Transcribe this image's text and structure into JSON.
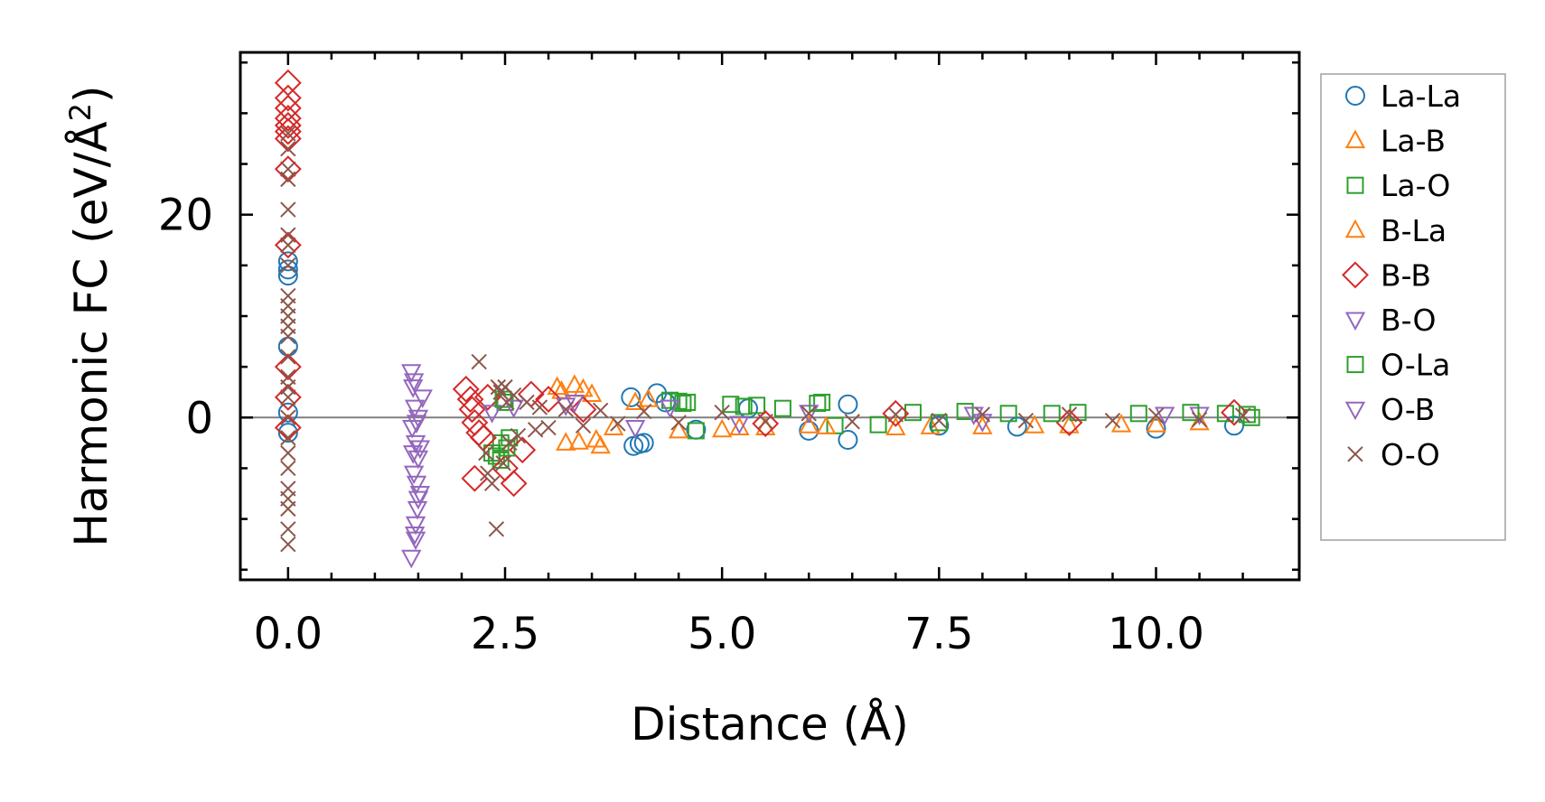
{
  "chart_data": {
    "type": "scatter",
    "title": "",
    "xlabel": "Distance (Å)",
    "ylabel_main": "Harmonic FC (eV/Å",
    "ylabel_sup": "2",
    "ylabel_close": ")",
    "xlim": [
      -0.55,
      11.65
    ],
    "ylim": [
      -16,
      36
    ],
    "x_ticks": [
      0.0,
      2.5,
      5.0,
      7.5,
      10.0
    ],
    "x_tick_labels": [
      "0.0",
      "2.5",
      "5.0",
      "7.5",
      "10.0"
    ],
    "y_ticks": [
      0,
      20
    ],
    "y_tick_labels": [
      "0",
      "20"
    ],
    "legend_position": "outside-right",
    "zero_line": true,
    "series": [
      {
        "name": "La-La",
        "marker": "circle",
        "color": "#1f77b4",
        "points": [
          [
            0.0,
            15.4
          ],
          [
            0.0,
            14.6
          ],
          [
            0.0,
            14.0
          ],
          [
            0.0,
            7.0
          ],
          [
            0.0,
            -1.5
          ],
          [
            0.0,
            0.5
          ],
          [
            3.95,
            2.0
          ],
          [
            3.98,
            -2.8
          ],
          [
            4.05,
            -2.6
          ],
          [
            4.1,
            -2.5
          ],
          [
            4.25,
            2.4
          ],
          [
            4.35,
            1.5
          ],
          [
            4.7,
            -1.2
          ],
          [
            5.3,
            0.9
          ],
          [
            6.0,
            -1.3
          ],
          [
            6.45,
            -2.2
          ],
          [
            6.45,
            1.3
          ],
          [
            7.5,
            -0.8
          ],
          [
            8.4,
            -0.9
          ],
          [
            10.0,
            -1.1
          ],
          [
            10.9,
            -0.8
          ]
        ]
      },
      {
        "name": "La-B",
        "marker": "triangle-up",
        "color": "#ff7f0e",
        "points": [
          [
            3.1,
            3.0
          ],
          [
            3.2,
            -2.5
          ],
          [
            3.3,
            3.2
          ],
          [
            3.35,
            -2.4
          ],
          [
            3.5,
            2.3
          ],
          [
            3.6,
            -2.8
          ],
          [
            3.75,
            -1.0
          ],
          [
            4.0,
            1.5
          ],
          [
            5.0,
            -1.2
          ],
          [
            5.5,
            -1.0
          ],
          [
            6.0,
            -0.8
          ],
          [
            7.0,
            -1.0
          ],
          [
            8.0,
            -0.9
          ],
          [
            9.0,
            -0.8
          ],
          [
            10.0,
            -0.7
          ],
          [
            10.5,
            -0.5
          ]
        ]
      },
      {
        "name": "La-O",
        "marker": "square",
        "color": "#2ca02c",
        "points": [
          [
            2.35,
            -3.5
          ],
          [
            2.4,
            -3.8
          ],
          [
            2.45,
            -2.5
          ],
          [
            2.5,
            1.5
          ],
          [
            2.55,
            -2.0
          ],
          [
            4.4,
            1.7
          ],
          [
            4.5,
            1.6
          ],
          [
            4.6,
            1.5
          ],
          [
            4.7,
            -1.3
          ],
          [
            5.1,
            1.3
          ],
          [
            5.4,
            1.2
          ],
          [
            5.7,
            0.9
          ],
          [
            6.15,
            1.5
          ],
          [
            6.3,
            -0.8
          ],
          [
            6.8,
            -0.7
          ],
          [
            7.2,
            0.5
          ],
          [
            7.8,
            0.6
          ],
          [
            8.3,
            0.4
          ],
          [
            9.1,
            0.5
          ],
          [
            9.8,
            0.4
          ],
          [
            10.8,
            0.4
          ],
          [
            11.1,
            0.0
          ]
        ]
      },
      {
        "name": "B-La",
        "marker": "triangle-up",
        "color": "#ff7f0e",
        "points": [
          [
            3.15,
            2.6
          ],
          [
            3.4,
            2.8
          ],
          [
            3.55,
            -2.2
          ],
          [
            4.15,
            1.8
          ],
          [
            4.5,
            -1.3
          ],
          [
            5.2,
            -1.0
          ],
          [
            6.2,
            -0.9
          ],
          [
            7.4,
            -0.9
          ],
          [
            8.6,
            -0.8
          ],
          [
            9.6,
            -0.7
          ]
        ]
      },
      {
        "name": "B-B",
        "marker": "diamond",
        "color": "#d62728",
        "points": [
          [
            0.0,
            33.0
          ],
          [
            0.0,
            31.5
          ],
          [
            0.0,
            30.5
          ],
          [
            0.0,
            29.5
          ],
          [
            0.0,
            28.8
          ],
          [
            0.0,
            28.2
          ],
          [
            0.0,
            27.5
          ],
          [
            0.0,
            24.5
          ],
          [
            0.0,
            17.0
          ],
          [
            0.0,
            5.0
          ],
          [
            0.0,
            2.0
          ],
          [
            0.0,
            -1.0
          ],
          [
            2.05,
            2.8
          ],
          [
            2.1,
            1.8
          ],
          [
            2.12,
            0.8
          ],
          [
            2.15,
            -0.5
          ],
          [
            2.15,
            -6.0
          ],
          [
            2.2,
            -1.5
          ],
          [
            2.25,
            -2.0
          ],
          [
            2.3,
            2.0
          ],
          [
            2.5,
            -5.0
          ],
          [
            2.6,
            -6.5
          ],
          [
            2.7,
            -3.2
          ],
          [
            2.8,
            2.3
          ],
          [
            3.0,
            1.8
          ],
          [
            3.4,
            0.8
          ],
          [
            5.5,
            -0.6
          ],
          [
            7.0,
            0.4
          ],
          [
            9.0,
            -0.5
          ],
          [
            10.9,
            0.5
          ]
        ]
      },
      {
        "name": "B-O",
        "marker": "triangle-down",
        "color": "#9467bd",
        "points": [
          [
            1.42,
            4.5
          ],
          [
            1.44,
            3.0
          ],
          [
            1.46,
            1.0
          ],
          [
            1.43,
            -1.0
          ],
          [
            1.47,
            -2.5
          ],
          [
            1.5,
            -4.0
          ],
          [
            1.45,
            -5.5
          ],
          [
            1.48,
            -6.5
          ],
          [
            1.52,
            -7.5
          ],
          [
            1.49,
            -9.0
          ],
          [
            1.47,
            -10.5
          ],
          [
            1.46,
            -11.5
          ],
          [
            1.42,
            -13.8
          ],
          [
            1.55,
            2.0
          ],
          [
            1.5,
            0.0
          ],
          [
            1.52,
            -3.0
          ],
          [
            2.35,
            0.5
          ],
          [
            3.2,
            1.2
          ],
          [
            4.0,
            -1.0
          ],
          [
            6.0,
            0.5
          ],
          [
            8.0,
            -0.4
          ],
          [
            10.5,
            0.3
          ]
        ]
      },
      {
        "name": "O-La",
        "marker": "square",
        "color": "#2ca02c",
        "points": [
          [
            2.45,
            -4.2
          ],
          [
            2.52,
            -3.0
          ],
          [
            2.48,
            1.8
          ],
          [
            4.55,
            1.4
          ],
          [
            5.25,
            1.1
          ],
          [
            6.1,
            1.4
          ],
          [
            7.5,
            -0.5
          ],
          [
            8.8,
            0.4
          ],
          [
            10.4,
            0.5
          ],
          [
            11.05,
            0.3
          ]
        ]
      },
      {
        "name": "O-B",
        "marker": "triangle-down",
        "color": "#9467bd",
        "points": [
          [
            1.45,
            3.6
          ],
          [
            1.48,
            -0.5
          ],
          [
            1.44,
            -3.5
          ],
          [
            1.5,
            -8.0
          ],
          [
            1.47,
            -12.0
          ],
          [
            2.6,
            1.0
          ],
          [
            3.3,
            1.5
          ],
          [
            4.4,
            1.0
          ],
          [
            5.2,
            -0.6
          ],
          [
            7.9,
            0.3
          ],
          [
            10.1,
            0.3
          ]
        ]
      },
      {
        "name": "O-O",
        "marker": "x",
        "color": "#8c564b",
        "points": [
          [
            0.0,
            28.0
          ],
          [
            0.0,
            26.5
          ],
          [
            0.0,
            24.5
          ],
          [
            0.0,
            23.5
          ],
          [
            0.0,
            20.5
          ],
          [
            0.0,
            18.0
          ],
          [
            0.0,
            17.0
          ],
          [
            0.0,
            15.0
          ],
          [
            0.0,
            12.0
          ],
          [
            0.0,
            11.0
          ],
          [
            0.0,
            10.0
          ],
          [
            0.0,
            9.0
          ],
          [
            0.0,
            8.0
          ],
          [
            0.0,
            6.0
          ],
          [
            0.0,
            4.0
          ],
          [
            0.0,
            3.0
          ],
          [
            0.0,
            2.0
          ],
          [
            0.0,
            0.0
          ],
          [
            0.0,
            -2.0
          ],
          [
            0.0,
            -3.5
          ],
          [
            0.0,
            -5.0
          ],
          [
            0.0,
            -7.0
          ],
          [
            0.0,
            -8.0
          ],
          [
            0.0,
            -9.0
          ],
          [
            0.0,
            -11.0
          ],
          [
            0.0,
            -12.5
          ],
          [
            2.2,
            5.5
          ],
          [
            2.28,
            -3.5
          ],
          [
            2.3,
            -5.5
          ],
          [
            2.35,
            -6.5
          ],
          [
            2.4,
            -11.0
          ],
          [
            2.42,
            3.0
          ],
          [
            2.45,
            2.5
          ],
          [
            2.48,
            -4.5
          ],
          [
            2.5,
            3.0
          ],
          [
            2.52,
            1.5
          ],
          [
            2.55,
            -2.5
          ],
          [
            2.6,
            2.2
          ],
          [
            2.65,
            -1.8
          ],
          [
            2.75,
            1.5
          ],
          [
            2.85,
            -1.2
          ],
          [
            2.9,
            1.0
          ],
          [
            3.0,
            -1.0
          ],
          [
            3.2,
            0.8
          ],
          [
            3.4,
            -0.8
          ],
          [
            3.6,
            0.7
          ],
          [
            3.8,
            -0.6
          ],
          [
            4.1,
            0.6
          ],
          [
            4.5,
            -0.5
          ],
          [
            5.0,
            0.5
          ],
          [
            5.5,
            -0.4
          ],
          [
            6.0,
            0.4
          ],
          [
            6.5,
            -0.4
          ],
          [
            7.0,
            0.3
          ],
          [
            7.5,
            -0.3
          ],
          [
            8.0,
            0.3
          ],
          [
            8.5,
            -0.3
          ],
          [
            9.0,
            0.3
          ],
          [
            9.5,
            -0.3
          ],
          [
            10.0,
            0.2
          ],
          [
            10.5,
            -0.2
          ],
          [
            11.0,
            0.2
          ]
        ]
      }
    ]
  }
}
